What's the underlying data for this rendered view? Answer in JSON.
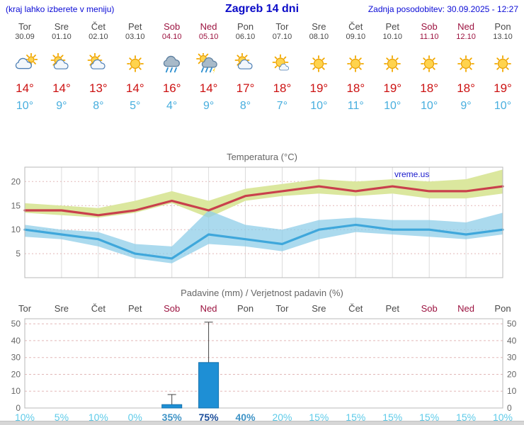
{
  "header": {
    "hint": "(kraj lahko izberete v meniju)",
    "title": "Zagreb 14 dni",
    "updated": "Zadnja posodobitev: 30.09.2025 - 12:27"
  },
  "days": [
    {
      "name": "Tor",
      "date": "30.09",
      "weekend": false,
      "icon": "mostly-cloudy",
      "high": "14°",
      "low": "10°"
    },
    {
      "name": "Sre",
      "date": "01.10",
      "weekend": false,
      "icon": "partly-cloudy",
      "high": "14°",
      "low": "9°"
    },
    {
      "name": "Čet",
      "date": "02.10",
      "weekend": false,
      "icon": "partly-cloudy",
      "high": "13°",
      "low": "8°"
    },
    {
      "name": "Pet",
      "date": "03.10",
      "weekend": false,
      "icon": "sunny",
      "high": "14°",
      "low": "5°"
    },
    {
      "name": "Sob",
      "date": "04.10",
      "weekend": true,
      "icon": "rain",
      "high": "16°",
      "low": "4°"
    },
    {
      "name": "Ned",
      "date": "05.10",
      "weekend": true,
      "icon": "rain-sun",
      "high": "14°",
      "low": "9°"
    },
    {
      "name": "Pon",
      "date": "06.10",
      "weekend": false,
      "icon": "partly-cloudy",
      "high": "17°",
      "low": "8°"
    },
    {
      "name": "Tor",
      "date": "07.10",
      "weekend": false,
      "icon": "mostly-sunny",
      "high": "18°",
      "low": "7°"
    },
    {
      "name": "Sre",
      "date": "08.10",
      "weekend": false,
      "icon": "sunny",
      "high": "19°",
      "low": "10°"
    },
    {
      "name": "Čet",
      "date": "09.10",
      "weekend": false,
      "icon": "sunny",
      "high": "18°",
      "low": "11°"
    },
    {
      "name": "Pet",
      "date": "10.10",
      "weekend": false,
      "icon": "sunny",
      "high": "19°",
      "low": "10°"
    },
    {
      "name": "Sob",
      "date": "11.10",
      "weekend": true,
      "icon": "sunny",
      "high": "18°",
      "low": "10°"
    },
    {
      "name": "Ned",
      "date": "12.10",
      "weekend": true,
      "icon": "sunny",
      "high": "18°",
      "low": "9°"
    },
    {
      "name": "Pon",
      "date": "13.10",
      "weekend": false,
      "icon": "sunny",
      "high": "19°",
      "low": "10°"
    }
  ],
  "chart_data": [
    {
      "type": "line",
      "title": "Temperatura (°C)",
      "watermark": "vreme.us",
      "categories": [
        "Tor 30.09",
        "Sre 01.10",
        "Čet 02.10",
        "Pet 03.10",
        "Sob 04.10",
        "Ned 05.10",
        "Pon 06.10",
        "Tor 07.10",
        "Sre 08.10",
        "Čet 09.10",
        "Pet 10.10",
        "Sob 11.10",
        "Ned 12.10",
        "Pon 13.10"
      ],
      "ylim": [
        0,
        23
      ],
      "yticks": [
        5,
        10,
        15,
        20
      ],
      "series": [
        {
          "name": "temp-max",
          "color": "#c9404c",
          "values": [
            14,
            14,
            13,
            14,
            16,
            14,
            17,
            18,
            19,
            18,
            19,
            18,
            18,
            19
          ]
        },
        {
          "name": "temp-min",
          "color": "#3fa7db",
          "values": [
            10,
            9,
            8,
            5,
            4,
            9,
            8,
            7,
            10,
            11,
            10,
            10,
            9,
            10
          ]
        },
        {
          "name": "temp-max-range-upper",
          "color": "#dbe79e",
          "values": [
            15.5,
            15,
            14.5,
            16,
            18,
            16,
            18.5,
            19.5,
            20.5,
            20,
            20.5,
            20,
            20.5,
            22.5
          ]
        },
        {
          "name": "temp-max-range-lower",
          "color": "#dbe79e",
          "values": [
            13.5,
            13,
            12.5,
            13.5,
            15.5,
            12.5,
            16,
            17,
            17.5,
            17,
            17.5,
            16.5,
            16.5,
            17.5
          ]
        },
        {
          "name": "temp-min-range-upper",
          "color": "#8fcde8",
          "values": [
            11,
            10,
            9.5,
            7,
            6.5,
            14,
            11,
            10,
            12,
            12.5,
            12,
            12,
            11.5,
            13.5
          ]
        },
        {
          "name": "temp-min-range-lower",
          "color": "#8fcde8",
          "values": [
            8.5,
            8,
            6.5,
            4,
            3,
            7,
            6.5,
            5.5,
            8,
            9.5,
            9,
            8.5,
            8,
            9
          ]
        }
      ]
    },
    {
      "type": "bar",
      "title": "Padavine (mm) / Verjetnost padavin (%)",
      "categories": [
        "Tor",
        "Sre",
        "Čet",
        "Pet",
        "Sob",
        "Ned",
        "Pon",
        "Tor",
        "Sre",
        "Čet",
        "Pet",
        "Sob",
        "Ned",
        "Pon"
      ],
      "values": [
        0,
        0,
        0,
        0,
        2,
        27,
        0,
        0,
        0,
        0,
        0,
        0,
        0,
        0
      ],
      "whisker_max": [
        0,
        0,
        0,
        0,
        8,
        51,
        0,
        0,
        0,
        0,
        0,
        0,
        0,
        0
      ],
      "probabilities": [
        "10%",
        "5%",
        "10%",
        "0%",
        "35%",
        "75%",
        "40%",
        "20%",
        "15%",
        "15%",
        "15%",
        "15%",
        "15%",
        "10%"
      ],
      "prob_colors": [
        "#5ecbe9",
        "#5ecbe9",
        "#5ecbe9",
        "#5ecbe9",
        "#3e93c6",
        "#1d4f9b",
        "#3e93c6",
        "#5ecbe9",
        "#5ecbe9",
        "#5ecbe9",
        "#5ecbe9",
        "#5ecbe9",
        "#5ecbe9",
        "#5ecbe9"
      ],
      "ylim": [
        0,
        53
      ],
      "yticks": [
        0,
        10,
        20,
        30,
        40,
        50
      ]
    }
  ],
  "colors": {
    "header_blue": "#0b0bd6",
    "weekday_gray": "#4a4a4a",
    "weekend_red": "#9c1340",
    "high_red": "#cc1212",
    "low_blue": "#47aede",
    "grid_pink": "#e2b8b8",
    "grid_gray": "#dcdcdc",
    "border_gray": "#b8b8b8",
    "bar_blue": "#1e8fd5",
    "bar_border": "#1271ad",
    "watermark_blue": "#1a1acc",
    "pct_light": "#5ecbe9"
  }
}
